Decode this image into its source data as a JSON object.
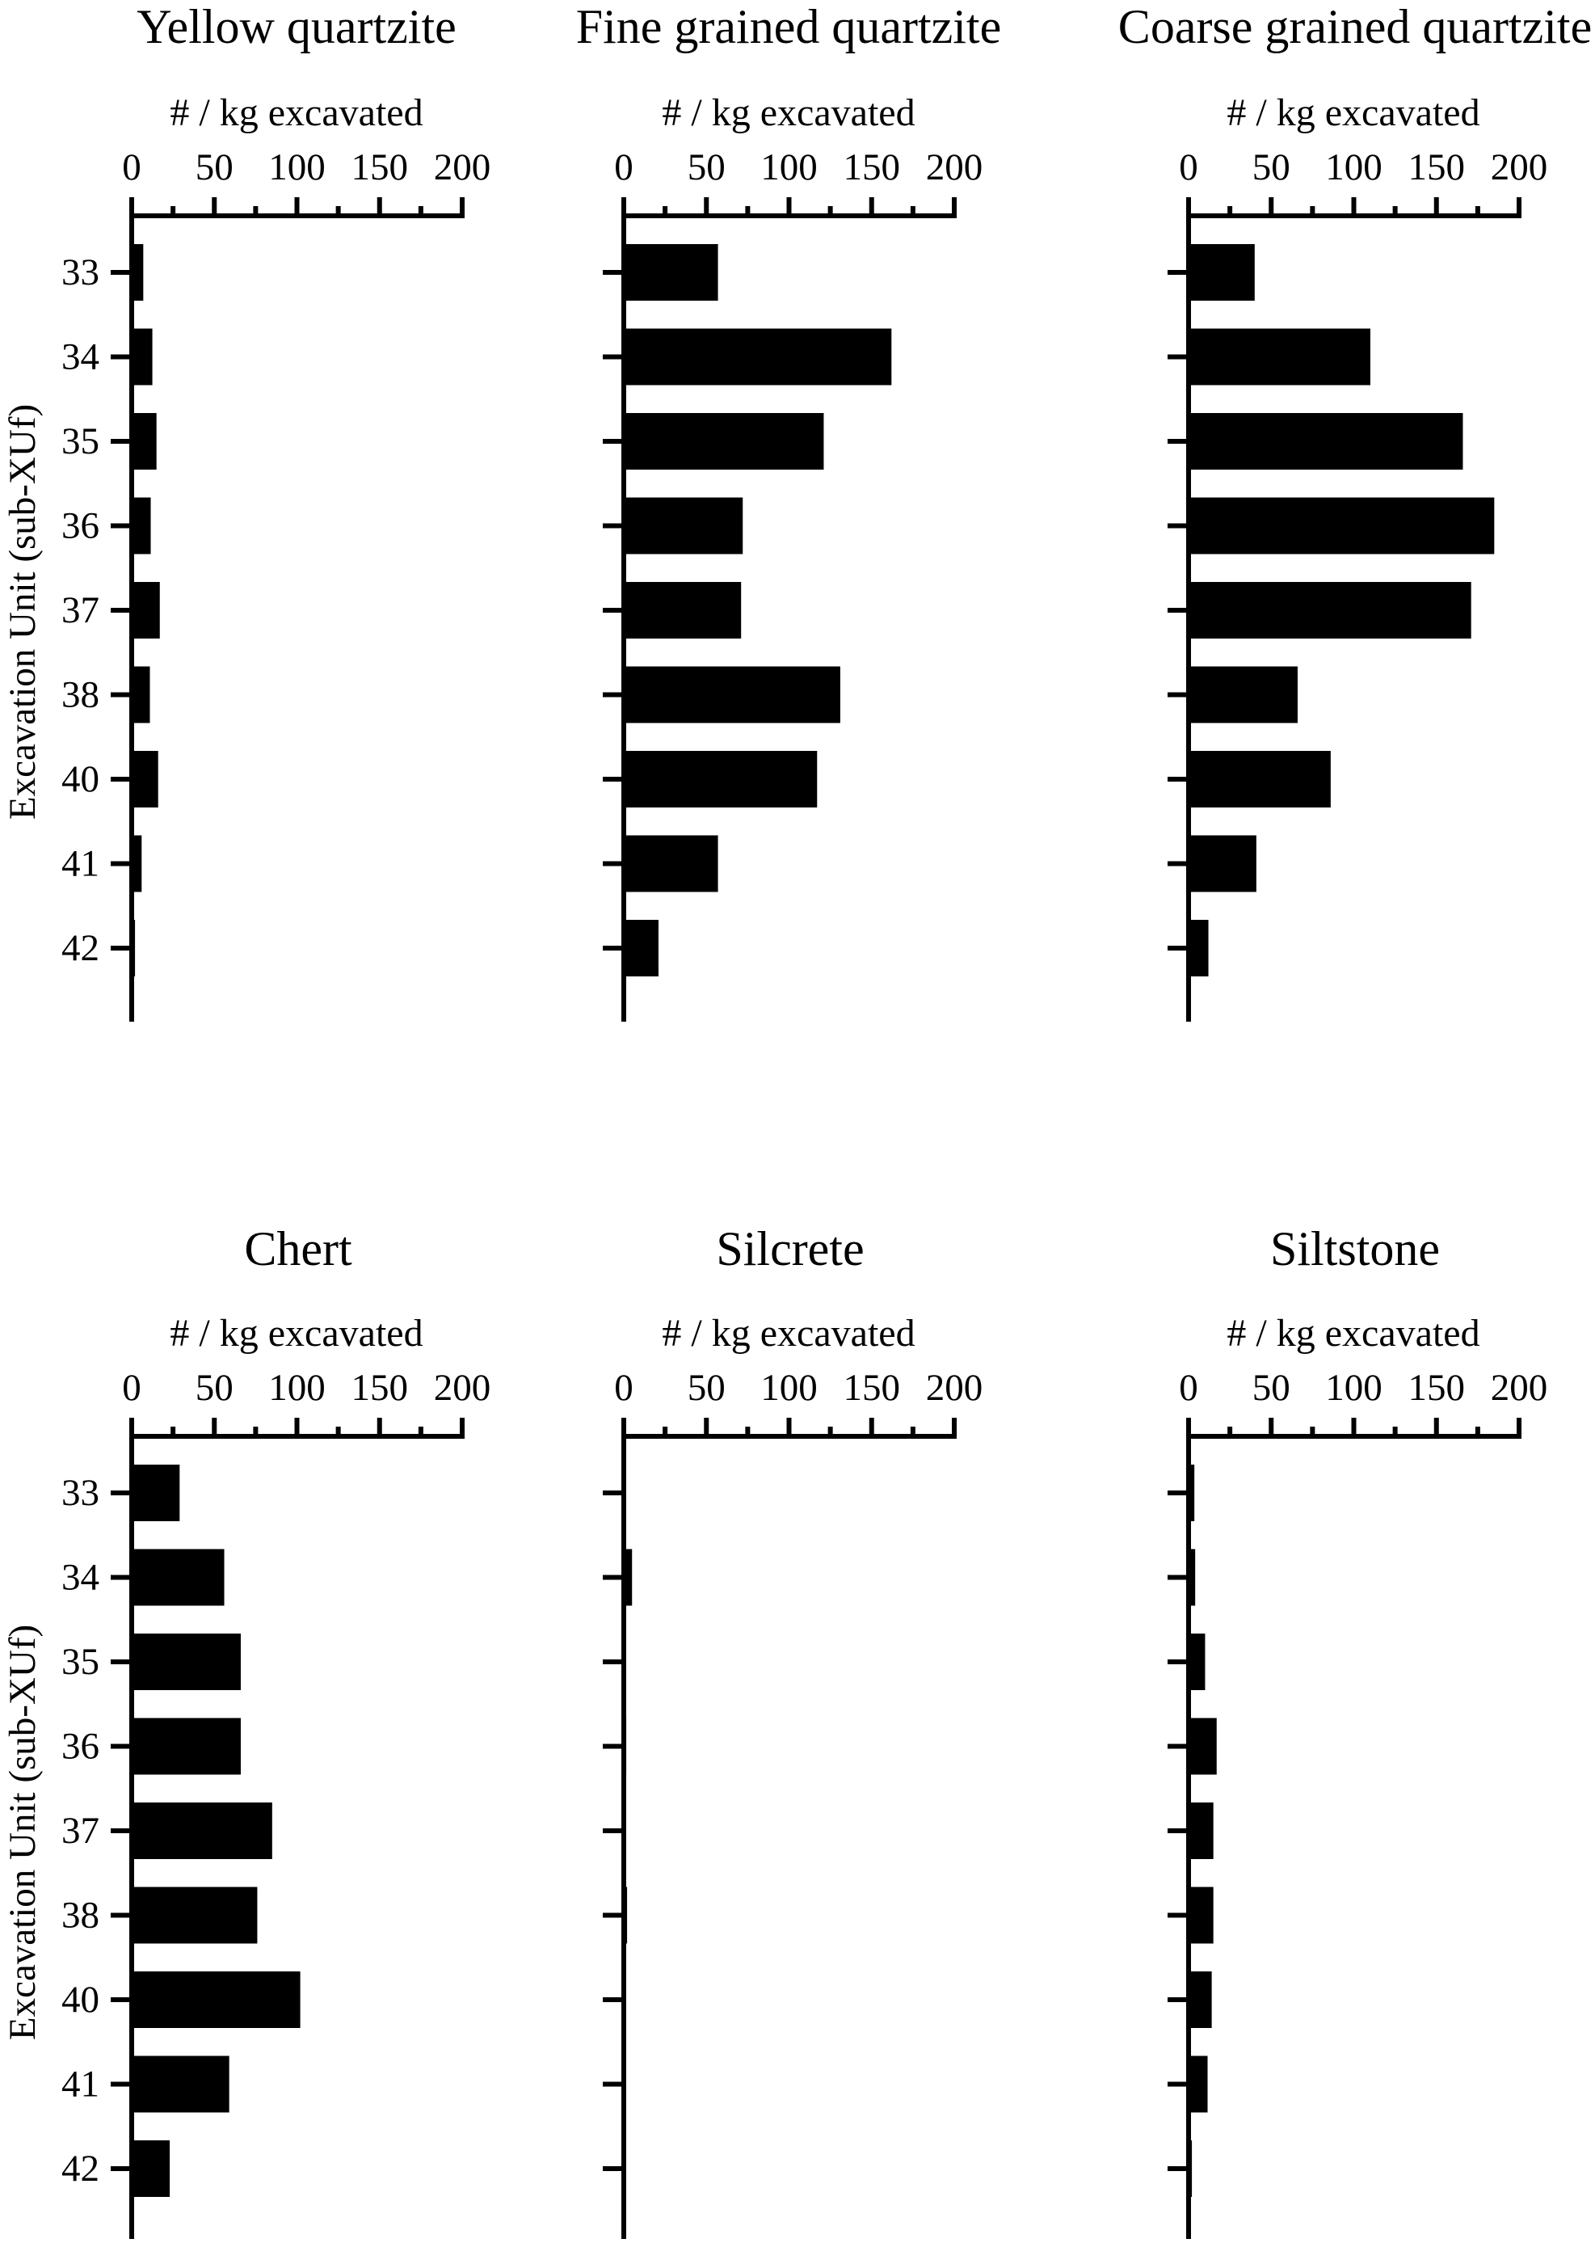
{
  "figure": {
    "y_axis_title": "Excavation Unit (sub-XUf)",
    "x_axis_title": "# / kg excavated",
    "x_ticks": [
      "0",
      "50",
      "100",
      "150",
      "200"
    ],
    "categories": [
      "33",
      "34",
      "35",
      "36",
      "37",
      "38",
      "40",
      "41",
      "42"
    ],
    "bar_color": "#000000"
  },
  "panels": [
    {
      "title": "Yellow quartzite"
    },
    {
      "title": "Fine grained quartzite"
    },
    {
      "title": "Coarse grained quartzite"
    },
    {
      "title": "Chert"
    },
    {
      "title": "Silcrete"
    },
    {
      "title": "Siltstone"
    }
  ],
  "chart_data": [
    {
      "type": "bar",
      "orientation": "horizontal",
      "title": "Yellow quartzite",
      "xlabel": "# / kg excavated",
      "ylabel": "Excavation Unit (sub-XUf)",
      "categories": [
        "33",
        "34",
        "35",
        "36",
        "37",
        "38",
        "40",
        "41",
        "42"
      ],
      "values": [
        7,
        12.5,
        15,
        11.5,
        17,
        11,
        16,
        6,
        2
      ],
      "xlim": [
        0,
        200
      ],
      "xticks": [
        0,
        50,
        100,
        150,
        200
      ],
      "grid": false
    },
    {
      "type": "bar",
      "orientation": "horizontal",
      "title": "Fine grained quartzite",
      "xlabel": "# / kg excavated",
      "ylabel": "",
      "categories": [
        "33",
        "34",
        "35",
        "36",
        "37",
        "38",
        "40",
        "41",
        "42"
      ],
      "values": [
        57,
        162,
        121,
        72,
        71,
        131,
        117,
        57,
        21
      ],
      "xlim": [
        0,
        200
      ],
      "xticks": [
        0,
        50,
        100,
        150,
        200
      ],
      "grid": false
    },
    {
      "type": "bar",
      "orientation": "horizontal",
      "title": "Coarse grained quartzite",
      "xlabel": "# / kg excavated",
      "ylabel": "",
      "categories": [
        "33",
        "34",
        "35",
        "36",
        "37",
        "38",
        "40",
        "41",
        "42"
      ],
      "values": [
        40,
        110,
        166,
        185,
        171,
        66,
        86,
        41,
        12
      ],
      "xlim": [
        0,
        200
      ],
      "xticks": [
        0,
        50,
        100,
        150,
        200
      ],
      "grid": false
    },
    {
      "type": "bar",
      "orientation": "horizontal",
      "title": "Chert",
      "xlabel": "# / kg excavated",
      "ylabel": "Excavation Unit (sub-XUf)",
      "categories": [
        "33",
        "34",
        "35",
        "36",
        "37",
        "38",
        "40",
        "41",
        "42"
      ],
      "values": [
        29,
        56,
        66,
        66,
        85,
        76,
        102,
        59,
        23
      ],
      "xlim": [
        0,
        200
      ],
      "xticks": [
        0,
        50,
        100,
        150,
        200
      ],
      "grid": false
    },
    {
      "type": "bar",
      "orientation": "horizontal",
      "title": "Silcrete",
      "xlabel": "# / kg excavated",
      "ylabel": "",
      "categories": [
        "33",
        "34",
        "35",
        "36",
        "37",
        "38",
        "40",
        "41",
        "42"
      ],
      "values": [
        0,
        5,
        0,
        1.5,
        0,
        2,
        0,
        0,
        0
      ],
      "xlim": [
        0,
        200
      ],
      "xticks": [
        0,
        50,
        100,
        150,
        200
      ],
      "grid": false
    },
    {
      "type": "bar",
      "orientation": "horizontal",
      "title": "Siltstone",
      "xlabel": "# / kg excavated",
      "ylabel": "",
      "categories": [
        "33",
        "34",
        "35",
        "36",
        "37",
        "38",
        "40",
        "41",
        "42"
      ],
      "values": [
        3.5,
        4,
        10,
        17,
        15,
        15,
        14,
        11.5,
        2
      ],
      "xlim": [
        0,
        200
      ],
      "xticks": [
        0,
        50,
        100,
        150,
        200
      ],
      "grid": false
    }
  ]
}
